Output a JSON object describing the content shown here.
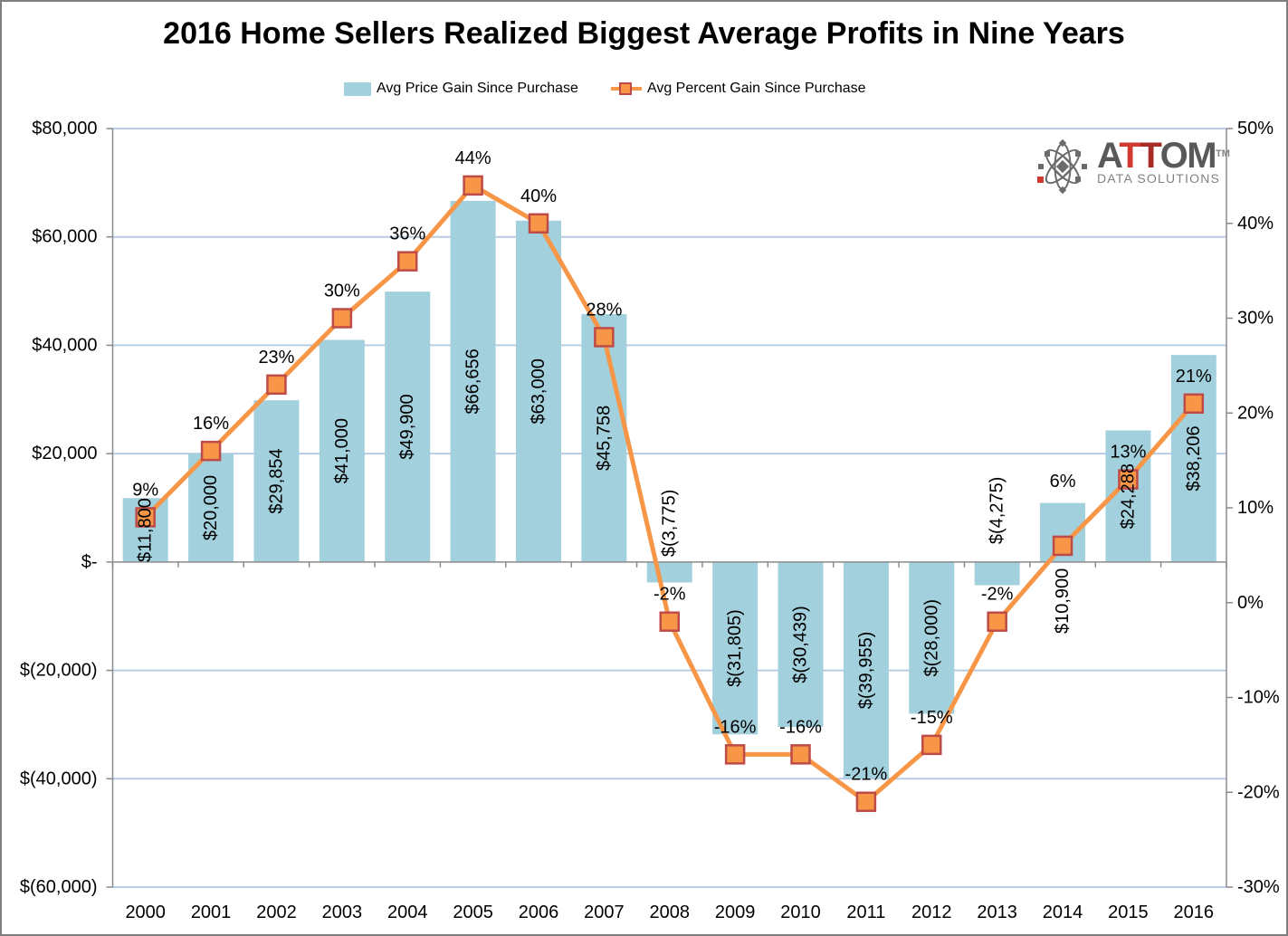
{
  "chart_data": {
    "type": "bar+line combo",
    "title": "2016 Home Sellers Realized Biggest Average Profits in Nine Years",
    "categories": [
      "2000",
      "2001",
      "2002",
      "2003",
      "2004",
      "2005",
      "2006",
      "2007",
      "2008",
      "2009",
      "2010",
      "2011",
      "2012",
      "2013",
      "2014",
      "2015",
      "2016"
    ],
    "series": [
      {
        "name": "Avg Price Gain Since Purchase",
        "type": "bar",
        "axis": "left",
        "values": [
          11800,
          20000,
          29854,
          41000,
          49900,
          66656,
          63000,
          45758,
          -3775,
          -31805,
          -30439,
          -39955,
          -28000,
          -4275,
          10900,
          24288,
          38206
        ],
        "labels": [
          "$11,800",
          "$20,000",
          "$29,854",
          "$41,000",
          "$49,900",
          "$66,656",
          "$63,000",
          "$45,758",
          "$(3,775)",
          "$(31,805)",
          "$(30,439)",
          "$(39,955)",
          "$(28,000)",
          "$(4,275)",
          "$10,900",
          "$24,288",
          "$38,206"
        ]
      },
      {
        "name": "Avg Percent Gain Since Purchase",
        "type": "line",
        "axis": "right",
        "values": [
          9,
          16,
          23,
          30,
          36,
          44,
          40,
          28,
          -2,
          -16,
          -16,
          -21,
          -15,
          -2,
          6,
          13,
          21
        ],
        "labels": [
          "9%",
          "16%",
          "23%",
          "30%",
          "36%",
          "44%",
          "40%",
          "28%",
          "-2%",
          "-16%",
          "-16%",
          "-21%",
          "-15%",
          "-2%",
          "6%",
          "13%",
          "21%"
        ]
      }
    ],
    "left_axis": {
      "ticks": [
        80000,
        60000,
        40000,
        20000,
        0,
        -20000,
        -40000,
        -60000
      ],
      "labels": [
        "$80,000",
        "$60,000",
        "$40,000",
        "$20,000",
        "$-",
        "$(20,000)",
        "$(40,000)",
        "$(60,000)"
      ],
      "range": [
        -60000,
        80000
      ]
    },
    "right_axis": {
      "ticks": [
        50,
        40,
        30,
        20,
        10,
        0,
        -10,
        -20,
        -30
      ],
      "labels": [
        "50%",
        "40%",
        "30%",
        "20%",
        "10%",
        "0%",
        "-10%",
        "-20%",
        "-30%"
      ],
      "range": [
        -30,
        50
      ]
    },
    "grid": true,
    "legend_position": "top",
    "colors": {
      "bar": "#A3D0DD",
      "line": "#F79646",
      "marker_fill": "#F79646",
      "marker_border": "#BE4B48",
      "gridline": "#B8CCE4",
      "axis": "#8A8A8A",
      "text": "#000000",
      "frame": "#7F7F7F"
    }
  },
  "logo": {
    "brand_prefix": "A",
    "brand_t1": "T",
    "brand_t2": "T",
    "brand_suffix": "OM",
    "trademark": "TM",
    "tagline": "DATA SOLUTIONS",
    "gray": "#58595B",
    "red": "#D13A30",
    "dark_red": "#A72B26",
    "icon_gray": "#6A6B6D",
    "tagline_gray": "#808285"
  }
}
